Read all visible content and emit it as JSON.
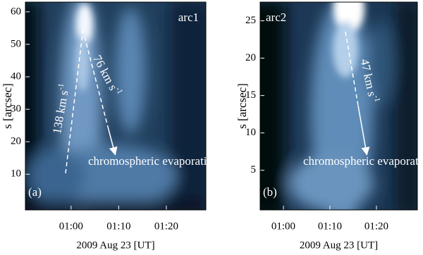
{
  "chart_data": [
    {
      "type": "image",
      "name": "arc1",
      "panel_label": "(a)",
      "ylabel": "s [arcsec]",
      "xlabel": "2009 Aug 23 [UT]",
      "ylim": [
        -1,
        63
      ],
      "yticks": [
        10,
        20,
        30,
        40,
        50,
        60
      ],
      "xlim": [
        50.4,
        88.3
      ],
      "xticks": [
        {
          "value": 60,
          "label": "01:00"
        },
        {
          "value": 70,
          "label": "01:10"
        },
        {
          "value": 80,
          "label": "01:20"
        }
      ],
      "annotations": [
        {
          "text": "138 km s",
          "sup": "-1"
        },
        {
          "text": "76 km s",
          "sup": "-1"
        }
      ],
      "arrow_label": "chromospheric evaporation"
    },
    {
      "type": "image",
      "name": "arc2",
      "panel_label": "(b)",
      "ylabel": "s [arcsec]",
      "xlabel": "2009 Aug 23 [UT]",
      "ylim": [
        -0.3,
        27.5
      ],
      "yticks": [
        5,
        10,
        15,
        20,
        25
      ],
      "xlim": [
        55,
        88.8
      ],
      "xticks": [
        {
          "value": 60,
          "label": "01:00"
        },
        {
          "value": 70,
          "label": "01:10"
        },
        {
          "value": 80,
          "label": "01:20"
        }
      ],
      "annotations": [
        {
          "text": "47 km s",
          "sup": "-1"
        }
      ],
      "arrow_label": "chromospheric evaporation"
    }
  ]
}
